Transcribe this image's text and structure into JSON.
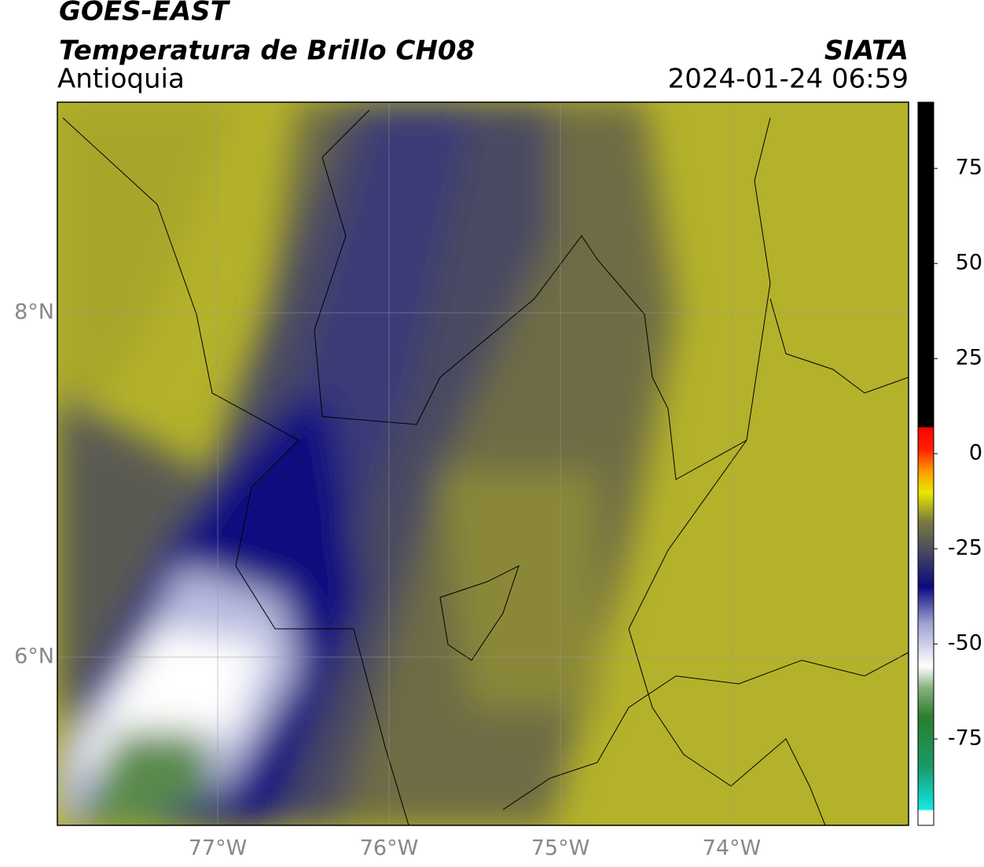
{
  "title": "GOES-EAST",
  "subtitle": "Temperatura de Brillo CH08",
  "region": "Antioquia",
  "source": "SIATA",
  "datetime": "2024-01-24 06:59",
  "map": {
    "xlim": [
      -77.936,
      -72.968
    ],
    "ylim": [
      5.023,
      9.224
    ],
    "xticks": [
      {
        "value": -77,
        "label": "77°W"
      },
      {
        "value": -76,
        "label": "76°W"
      },
      {
        "value": -75,
        "label": "75°W"
      },
      {
        "value": -74,
        "label": "74°W"
      }
    ],
    "yticks": [
      {
        "value": 6,
        "label": "6°N"
      },
      {
        "value": 8,
        "label": "8°N"
      }
    ],
    "grid": true
  },
  "colorbar": {
    "lim": [
      -97.7,
      92.4
    ],
    "ticks": [
      -75,
      -50,
      -25,
      0,
      25,
      50,
      75
    ]
  }
}
